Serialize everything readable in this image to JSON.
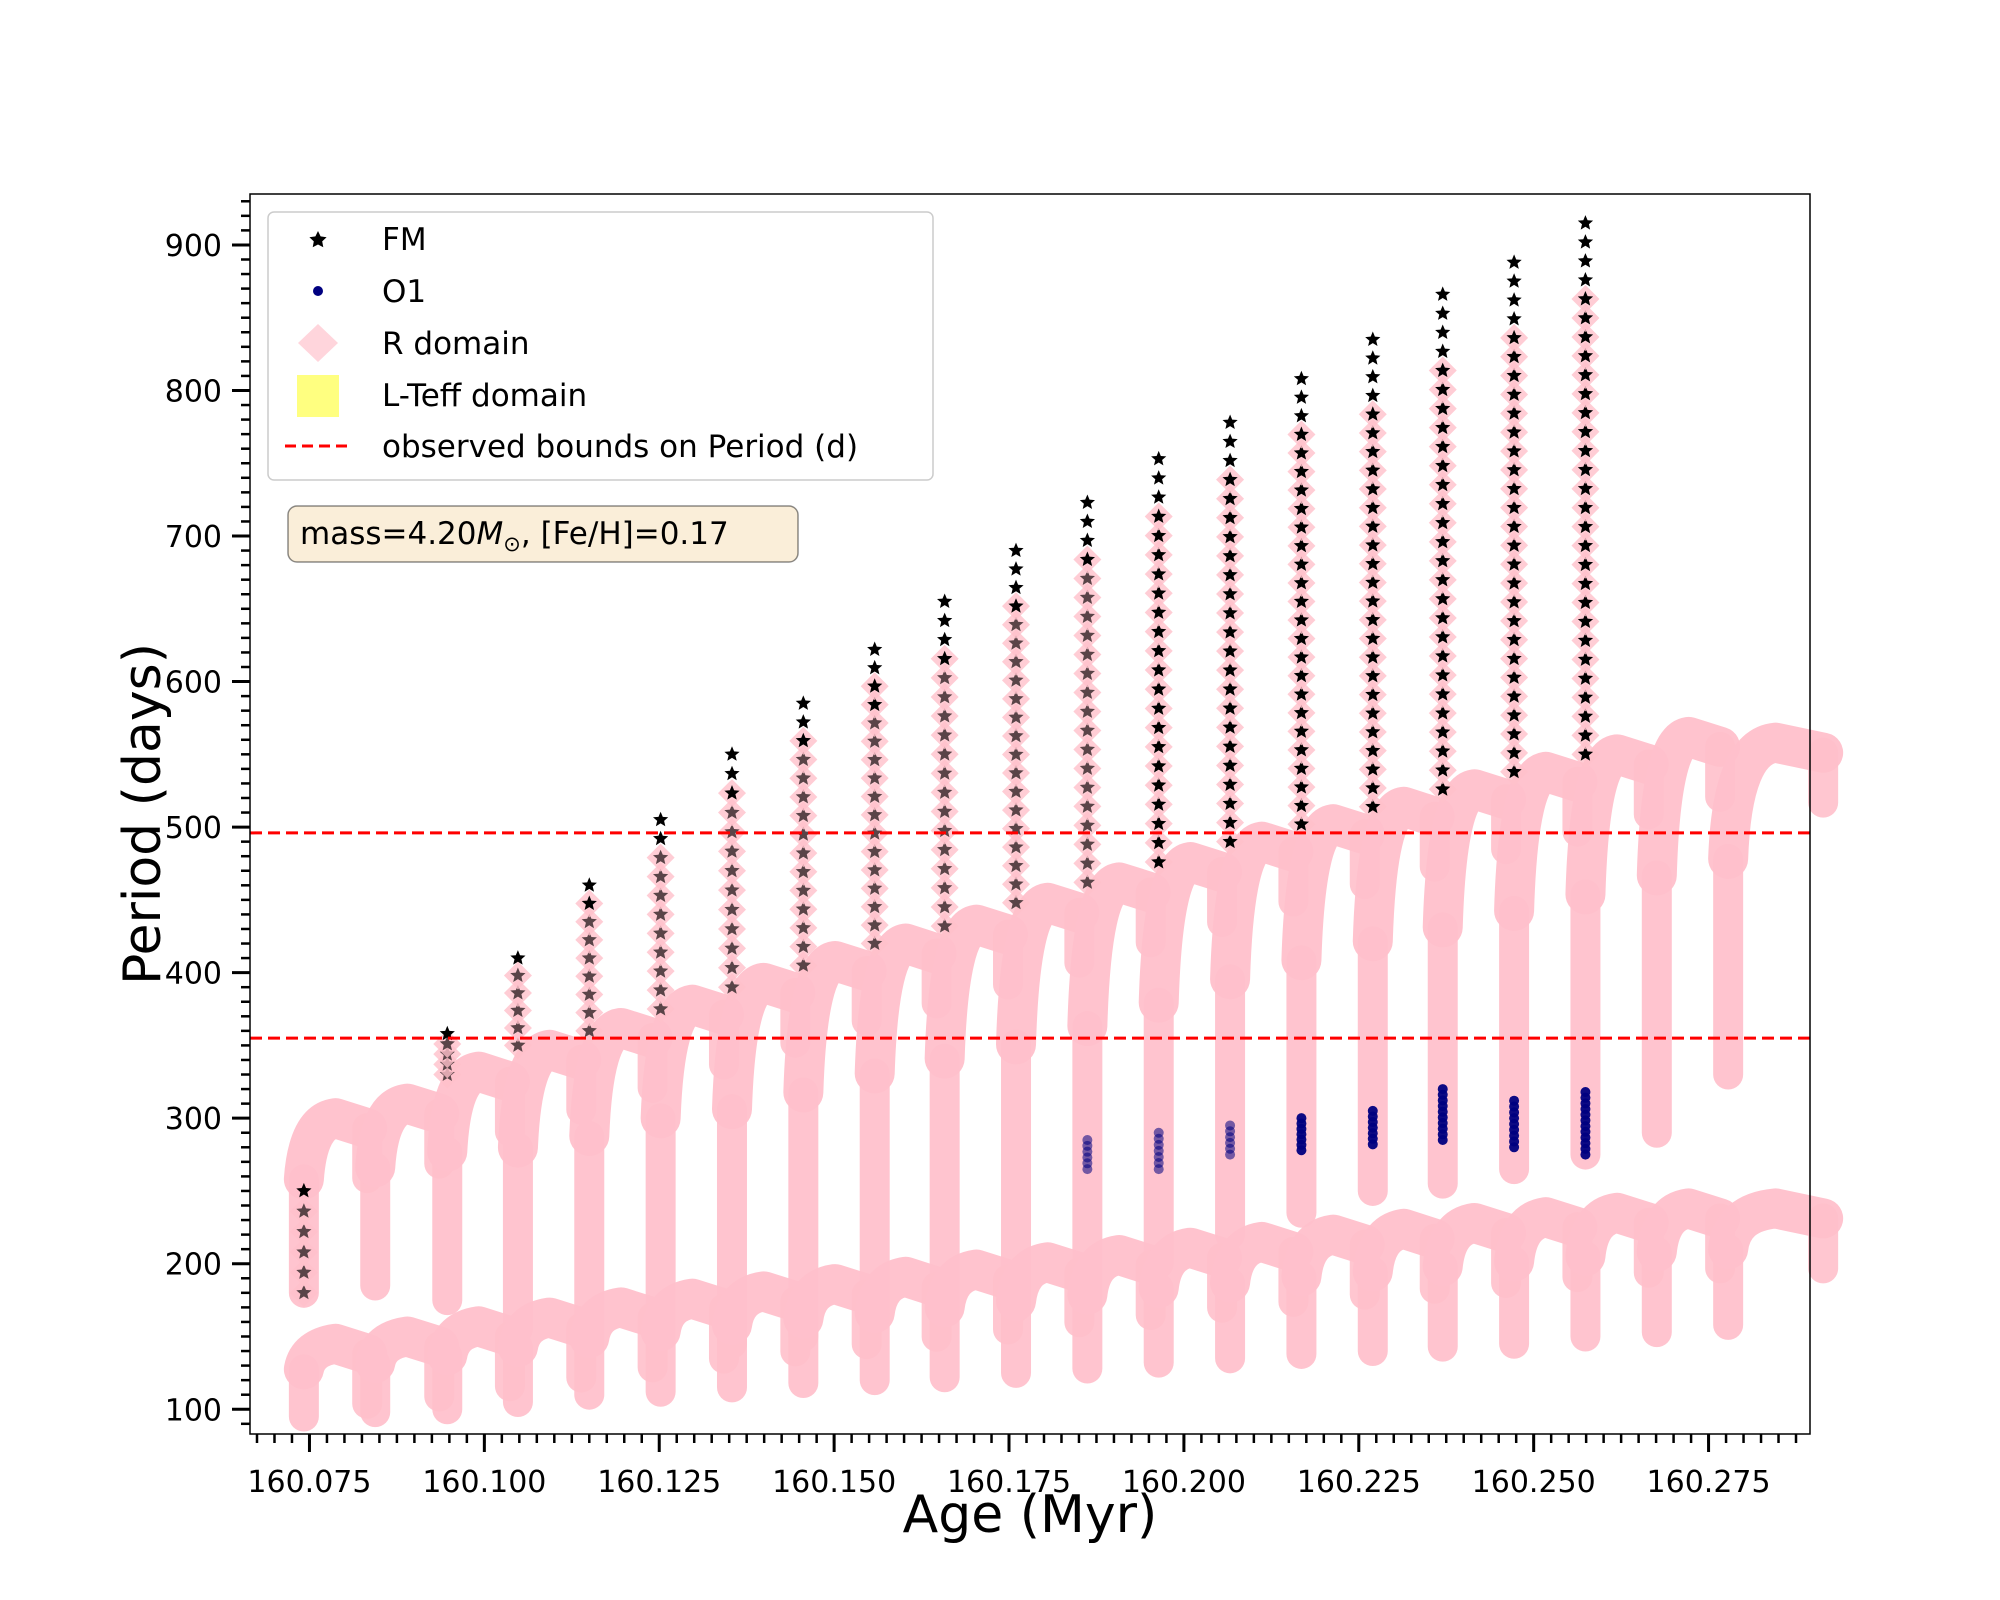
{
  "chart_data": {
    "type": "scatter",
    "xlabel": "Age (Myr)",
    "ylabel": "Period (days)",
    "xlim": [
      160.0665,
      160.2895
    ],
    "ylim": [
      83,
      935
    ],
    "xticks": [
      "160.075",
      "160.100",
      "160.125",
      "160.150",
      "160.175",
      "160.200",
      "160.225",
      "160.250",
      "160.275"
    ],
    "xtick_values": [
      160.075,
      160.1,
      160.125,
      160.15,
      160.175,
      160.2,
      160.225,
      160.25,
      160.275
    ],
    "yticks": [
      "100",
      "200",
      "300",
      "400",
      "500",
      "600",
      "700",
      "800",
      "900"
    ],
    "ytick_values": [
      100,
      200,
      300,
      400,
      500,
      600,
      700,
      800,
      900
    ],
    "grid": false,
    "legend_position": "top-left",
    "legend": [
      {
        "label": "FM",
        "marker": "star",
        "color": "#000000"
      },
      {
        "label": "O1",
        "marker": "circle",
        "color": "#000080"
      },
      {
        "label": "R domain",
        "marker": "diamond",
        "color": "#ffd0d8"
      },
      {
        "label": "L-Teff domain",
        "marker": "square",
        "color": "#ffff80"
      },
      {
        "label": "observed bounds on Period (d)",
        "marker": "dashed-line",
        "color": "#ff0000"
      }
    ],
    "annotation": {
      "prefix": "mass=4.20",
      "symbol": "M",
      "subscript": "⊙",
      "suffix": ", [Fe/H]=0.17"
    },
    "observed_bounds": [
      355,
      496
    ],
    "pulse_ages": [
      160.0742,
      160.0844,
      160.0947,
      160.1048,
      160.115,
      160.1252,
      160.1354,
      160.1456,
      160.1558,
      160.1658,
      160.176,
      160.1862,
      160.1964,
      160.2066,
      160.2168,
      160.227,
      160.237,
      160.2472,
      160.2574,
      160.2676,
      160.2778
    ],
    "series": [
      {
        "name": "R domain (FM track)",
        "color": "#ffc0cb",
        "segments": [
          {
            "x_start": 160.0742,
            "y_min": 180,
            "y_peak": 300
          },
          {
            "x_start": 160.0844,
            "y_min": 185,
            "y_peak": 310
          },
          {
            "x_start": 160.0947,
            "y_min": 175,
            "y_peak": 332
          },
          {
            "x_start": 160.1048,
            "y_min": 155,
            "y_peak": 347
          },
          {
            "x_start": 160.115,
            "y_min": 150,
            "y_peak": 362
          },
          {
            "x_start": 160.1252,
            "y_min": 155,
            "y_peak": 378
          },
          {
            "x_start": 160.1354,
            "y_min": 145,
            "y_peak": 393
          },
          {
            "x_start": 160.1456,
            "y_min": 150,
            "y_peak": 408
          },
          {
            "x_start": 160.1558,
            "y_min": 165,
            "y_peak": 420
          },
          {
            "x_start": 160.1658,
            "y_min": 170,
            "y_peak": 433
          },
          {
            "x_start": 160.176,
            "y_min": 170,
            "y_peak": 448
          },
          {
            "x_start": 160.1862,
            "y_min": 180,
            "y_peak": 462
          },
          {
            "x_start": 160.1964,
            "y_min": 200,
            "y_peak": 476
          },
          {
            "x_start": 160.2066,
            "y_min": 220,
            "y_peak": 490
          },
          {
            "x_start": 160.2168,
            "y_min": 235,
            "y_peak": 502
          },
          {
            "x_start": 160.227,
            "y_min": 250,
            "y_peak": 514
          },
          {
            "x_start": 160.237,
            "y_min": 255,
            "y_peak": 526
          },
          {
            "x_start": 160.2472,
            "y_min": 265,
            "y_peak": 538
          },
          {
            "x_start": 160.2574,
            "y_min": 275,
            "y_peak": 550
          },
          {
            "x_start": 160.2676,
            "y_min": 290,
            "y_peak": 562
          },
          {
            "x_start": 160.2778,
            "y_min": 330,
            "y_peak": 558
          }
        ]
      },
      {
        "name": "R domain (O1 track)",
        "color": "#ffc0cb",
        "segments": [
          {
            "x_start": 160.0742,
            "y_min": 95,
            "y_peak": 145
          },
          {
            "x_start": 160.0844,
            "y_min": 98,
            "y_peak": 150
          },
          {
            "x_start": 160.0947,
            "y_min": 100,
            "y_peak": 157
          },
          {
            "x_start": 160.1048,
            "y_min": 105,
            "y_peak": 163
          },
          {
            "x_start": 160.115,
            "y_min": 110,
            "y_peak": 170
          },
          {
            "x_start": 160.1252,
            "y_min": 112,
            "y_peak": 176
          },
          {
            "x_start": 160.1354,
            "y_min": 115,
            "y_peak": 181
          },
          {
            "x_start": 160.1456,
            "y_min": 118,
            "y_peak": 186
          },
          {
            "x_start": 160.1558,
            "y_min": 120,
            "y_peak": 191
          },
          {
            "x_start": 160.1658,
            "y_min": 122,
            "y_peak": 196
          },
          {
            "x_start": 160.176,
            "y_min": 125,
            "y_peak": 201
          },
          {
            "x_start": 160.1862,
            "y_min": 128,
            "y_peak": 206
          },
          {
            "x_start": 160.1964,
            "y_min": 132,
            "y_peak": 211
          },
          {
            "x_start": 160.2066,
            "y_min": 135,
            "y_peak": 215
          },
          {
            "x_start": 160.2168,
            "y_min": 138,
            "y_peak": 220
          },
          {
            "x_start": 160.227,
            "y_min": 140,
            "y_peak": 224
          },
          {
            "x_start": 160.237,
            "y_min": 143,
            "y_peak": 228
          },
          {
            "x_start": 160.2472,
            "y_min": 145,
            "y_peak": 232
          },
          {
            "x_start": 160.2574,
            "y_min": 150,
            "y_peak": 235
          },
          {
            "x_start": 160.2676,
            "y_min": 153,
            "y_peak": 238
          },
          {
            "x_start": 160.2778,
            "y_min": 158,
            "y_peak": 238
          }
        ]
      },
      {
        "name": "FM pulse columns",
        "color": "#000000",
        "columns": [
          {
            "x": 160.0742,
            "y_min": 180,
            "y_max": 250,
            "in_R": true
          },
          {
            "x": 160.0947,
            "y_min": 330,
            "y_max": 358,
            "in_R": true
          },
          {
            "x": 160.1048,
            "y_min": 350,
            "y_max": 410,
            "in_R": true
          },
          {
            "x": 160.115,
            "y_min": 360,
            "y_max": 460,
            "in_R": true
          },
          {
            "x": 160.1252,
            "y_min": 375,
            "y_max": 505,
            "in_R": true
          },
          {
            "x": 160.1354,
            "y_min": 390,
            "y_max": 550,
            "in_R": true
          },
          {
            "x": 160.1456,
            "y_min": 405,
            "y_max": 585,
            "in_R": true
          },
          {
            "x": 160.1558,
            "y_min": 420,
            "y_max": 622,
            "in_R": true
          },
          {
            "x": 160.1658,
            "y_min": 432,
            "y_max": 655,
            "in_R": true
          },
          {
            "x": 160.176,
            "y_min": 448,
            "y_max": 690,
            "in_R": true
          },
          {
            "x": 160.1862,
            "y_min": 462,
            "y_max": 723,
            "in_R": true
          },
          {
            "x": 160.1964,
            "y_min": 476,
            "y_max": 753,
            "in_R": true
          },
          {
            "x": 160.2066,
            "y_min": 490,
            "y_max": 778,
            "in_R": true
          },
          {
            "x": 160.2168,
            "y_min": 502,
            "y_max": 808,
            "in_R": true
          },
          {
            "x": 160.227,
            "y_min": 514,
            "y_max": 835,
            "in_R": true
          },
          {
            "x": 160.237,
            "y_min": 526,
            "y_max": 866,
            "in_R": true
          },
          {
            "x": 160.2472,
            "y_min": 538,
            "y_max": 888,
            "in_R": true
          },
          {
            "x": 160.2574,
            "y_min": 550,
            "y_max": 915,
            "in_R": true
          }
        ]
      },
      {
        "name": "O1 pulse columns",
        "color": "#000080",
        "columns": [
          {
            "x": 160.1862,
            "y_min": 265,
            "y_max": 285
          },
          {
            "x": 160.1964,
            "y_min": 265,
            "y_max": 290
          },
          {
            "x": 160.2066,
            "y_min": 275,
            "y_max": 295
          },
          {
            "x": 160.2168,
            "y_min": 278,
            "y_max": 300
          },
          {
            "x": 160.227,
            "y_min": 282,
            "y_max": 305
          },
          {
            "x": 160.237,
            "y_min": 285,
            "y_max": 320
          },
          {
            "x": 160.2472,
            "y_min": 280,
            "y_max": 312
          },
          {
            "x": 160.2574,
            "y_min": 275,
            "y_max": 318
          }
        ]
      }
    ]
  }
}
